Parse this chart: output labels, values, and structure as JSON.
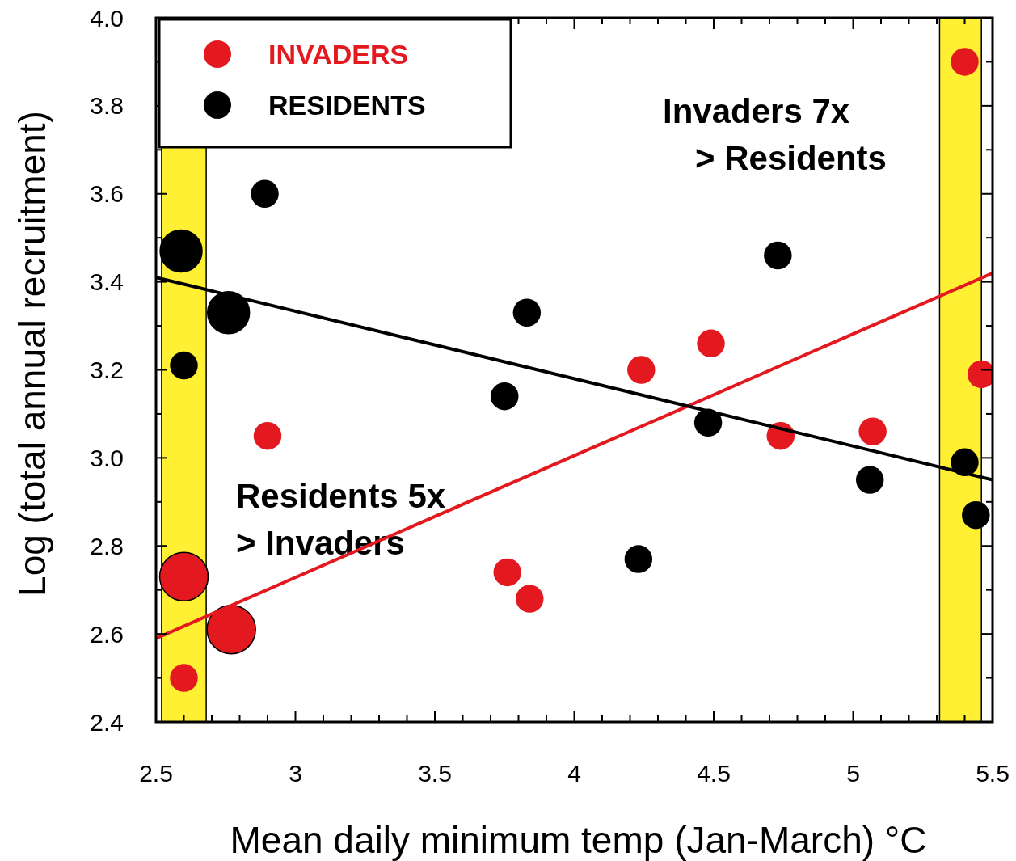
{
  "chart_data": {
    "type": "bubble",
    "xlabel": "Mean daily minimum temp (Jan-March) °C",
    "ylabel": "Log (total annual recruitment)",
    "xlim": [
      2.5,
      5.5
    ],
    "ylim": [
      2.4,
      4.0
    ],
    "xticks": [
      2.5,
      {
        "value": 2.6,
        "label": null
      },
      {
        "value": 2.7,
        "label": null
      },
      {
        "value": 2.8,
        "label": null
      },
      {
        "value": 2.9,
        "label": null
      },
      3,
      {
        "value": 3.1,
        "label": null
      },
      {
        "value": 3.2,
        "label": null
      },
      {
        "value": 3.3,
        "label": null
      },
      {
        "value": 3.4,
        "label": null
      },
      3.5,
      {
        "value": 3.6,
        "label": null
      },
      {
        "value": 3.7,
        "label": null
      },
      {
        "value": 3.8,
        "label": null
      },
      {
        "value": 3.9,
        "label": null
      },
      4,
      {
        "value": 4.1,
        "label": null
      },
      {
        "value": 4.2,
        "label": null
      },
      {
        "value": 4.3,
        "label": null
      },
      {
        "value": 4.4,
        "label": null
      },
      4.5,
      {
        "value": 4.6,
        "label": null
      },
      {
        "value": 4.7,
        "label": null
      },
      {
        "value": 4.8,
        "label": null
      },
      {
        "value": 4.9,
        "label": null
      },
      5,
      {
        "value": 5.1,
        "label": null
      },
      {
        "value": 5.2,
        "label": null
      },
      {
        "value": 5.3,
        "label": null
      },
      {
        "value": 5.4,
        "label": null
      },
      5.5
    ],
    "yticks": [
      2.4,
      {
        "value": 2.5,
        "label": null
      },
      2.6,
      {
        "value": 2.7,
        "label": null
      },
      2.8,
      {
        "value": 2.9,
        "label": null
      },
      {
        "value": 3.0,
        "label": "3.0"
      },
      {
        "value": 3.1,
        "label": null
      },
      3.2,
      {
        "value": 3.3,
        "label": null
      },
      3.4,
      {
        "value": 3.5,
        "label": null
      },
      3.6,
      {
        "value": 3.7,
        "label": null
      },
      3.8,
      {
        "value": 3.9,
        "label": null
      },
      {
        "value": 4.0,
        "label": "4.0"
      }
    ],
    "legend": "top left",
    "grid": false,
    "marker": "circle",
    "series": [
      {
        "name": "INVADERS",
        "color": "#e3191f",
        "x": [
          5.4,
          5.46,
          4.49,
          4.24,
          4.74,
          5.07,
          2.9,
          3.76,
          3.84,
          2.6,
          2.77,
          2.6
        ],
        "values": [
          3.9,
          3.19,
          3.26,
          3.2,
          3.05,
          3.06,
          3.05,
          2.74,
          2.68,
          2.73,
          2.61,
          2.5
        ],
        "sizes": [
          0.33,
          0.33,
          0.33,
          0.33,
          0.33,
          0.33,
          0.33,
          0.33,
          0.33,
          1,
          1,
          0.33
        ]
      },
      {
        "name": "RESIDENTS",
        "color": "#000000",
        "x": [
          2.59,
          2.76,
          2.89,
          2.6,
          3.83,
          3.75,
          4.73,
          4.48,
          4.23,
          5.06,
          5.4,
          5.44
        ],
        "values": [
          3.47,
          3.33,
          3.6,
          3.21,
          3.33,
          3.14,
          3.46,
          3.08,
          2.77,
          2.95,
          2.99,
          2.87
        ],
        "sizes": [
          0.75,
          0.75,
          0.33,
          0.33,
          0.33,
          0.33,
          0.33,
          0.33,
          0.33,
          0.33,
          0.33,
          0.33
        ]
      },
      {
        "type": "line",
        "marker": "none",
        "color": "#e3191f",
        "x": [
          2.5,
          5.5
        ],
        "values": [
          2.59,
          3.42
        ]
      },
      {
        "type": "line",
        "marker": "none",
        "color": "#000000",
        "x": [
          2.5,
          5.5
        ],
        "values": [
          3.41,
          2.95
        ]
      }
    ],
    "bands": [
      {
        "axis": "x",
        "from": 2.52,
        "to": 2.68,
        "color": "#fff033"
      },
      {
        "axis": "x",
        "from": 5.31,
        "to": 5.46,
        "color": "#fff033"
      }
    ],
    "annotations": [
      "Invaders 7x\n> Residents",
      "Residents 5x\n> Invaders"
    ]
  }
}
